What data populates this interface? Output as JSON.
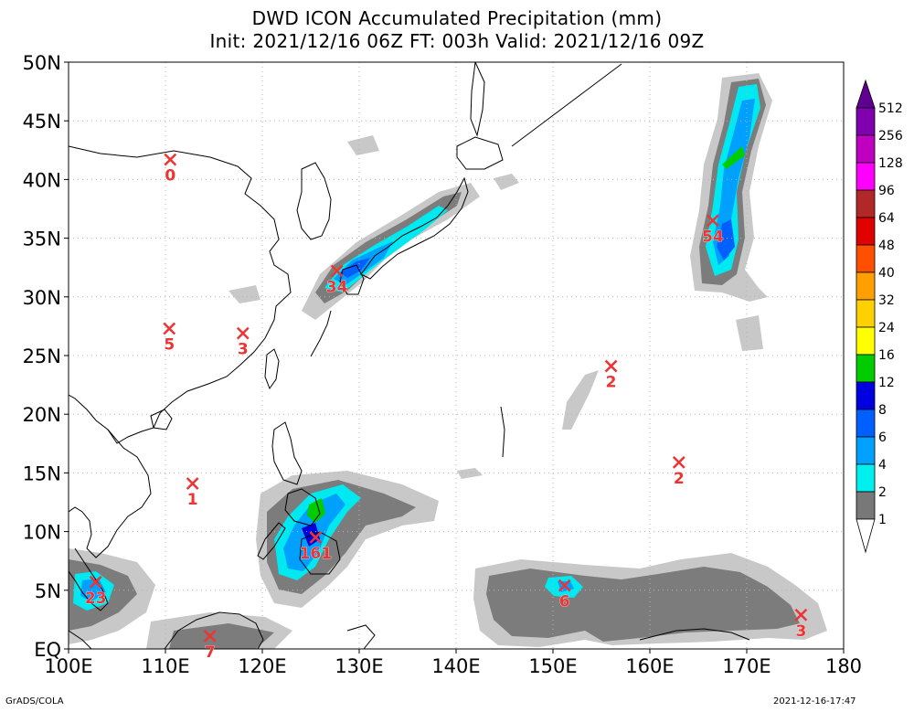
{
  "title": {
    "line1": "DWD ICON Accumulated Precipitation (mm)",
    "line2": "Init: 2021/12/16 06Z  FT: 003h  Valid: 2021/12/16 09Z"
  },
  "map": {
    "lon_range": [
      100,
      180
    ],
    "lat_range": [
      0,
      50
    ],
    "lon_ticks": [
      {
        "value": 100,
        "label": "100E"
      },
      {
        "value": 110,
        "label": "110E"
      },
      {
        "value": 120,
        "label": "120E"
      },
      {
        "value": 130,
        "label": "130E"
      },
      {
        "value": 140,
        "label": "140E"
      },
      {
        "value": 150,
        "label": "150E"
      },
      {
        "value": 160,
        "label": "160E"
      },
      {
        "value": 170,
        "label": "170E"
      },
      {
        "value": 180,
        "label": "180"
      }
    ],
    "lat_ticks": [
      {
        "value": 0,
        "label": "EQ"
      },
      {
        "value": 5,
        "label": "5N"
      },
      {
        "value": 10,
        "label": "10N"
      },
      {
        "value": 15,
        "label": "15N"
      },
      {
        "value": 20,
        "label": "20N"
      },
      {
        "value": 25,
        "label": "25N"
      },
      {
        "value": 30,
        "label": "30N"
      },
      {
        "value": 35,
        "label": "35N"
      },
      {
        "value": 40,
        "label": "40N"
      },
      {
        "value": 45,
        "label": "45N"
      },
      {
        "value": 50,
        "label": "50N"
      }
    ],
    "grid": true
  },
  "markers": [
    {
      "lon": 110.5,
      "lat": 41.7,
      "label": "0"
    },
    {
      "lon": 127.7,
      "lat": 32.2,
      "label": "34"
    },
    {
      "lon": 166.5,
      "lat": 36.5,
      "label": "54"
    },
    {
      "lon": 110.4,
      "lat": 27.3,
      "label": "5"
    },
    {
      "lon": 118.0,
      "lat": 26.9,
      "label": "3"
    },
    {
      "lon": 156.0,
      "lat": 24.1,
      "label": "2"
    },
    {
      "lon": 112.8,
      "lat": 14.1,
      "label": "1"
    },
    {
      "lon": 163.0,
      "lat": 15.9,
      "label": "2"
    },
    {
      "lon": 125.5,
      "lat": 9.5,
      "label": "161"
    },
    {
      "lon": 102.8,
      "lat": 5.7,
      "label": "23"
    },
    {
      "lon": 151.2,
      "lat": 5.4,
      "label": "6"
    },
    {
      "lon": 175.6,
      "lat": 2.9,
      "label": "3"
    },
    {
      "lon": 114.6,
      "lat": 1.1,
      "label": "7"
    }
  ],
  "colorbar": {
    "levels": [
      "1",
      "2",
      "4",
      "6",
      "8",
      "12",
      "16",
      "24",
      "32",
      "40",
      "48",
      "64",
      "96",
      "128",
      "256",
      "512"
    ],
    "colors": [
      "#c8c8c8",
      "#a0a0a0",
      "#787878",
      "#00f0f0",
      "#00a0ff",
      "#0060ff",
      "#0000e0",
      "#00cc00",
      "#ffff00",
      "#ffd000",
      "#ffa000",
      "#ff5000",
      "#e00000",
      "#b02828",
      "#ff00ff",
      "#c000c0",
      "#8000b0",
      "#600090"
    ]
  },
  "colors": {
    "marker": "#ee3333",
    "coast": "#000000",
    "grid": "#b4b4b4"
  },
  "footer": {
    "left": "GrADS/COLA",
    "right": "2021-12-16-17:47"
  }
}
